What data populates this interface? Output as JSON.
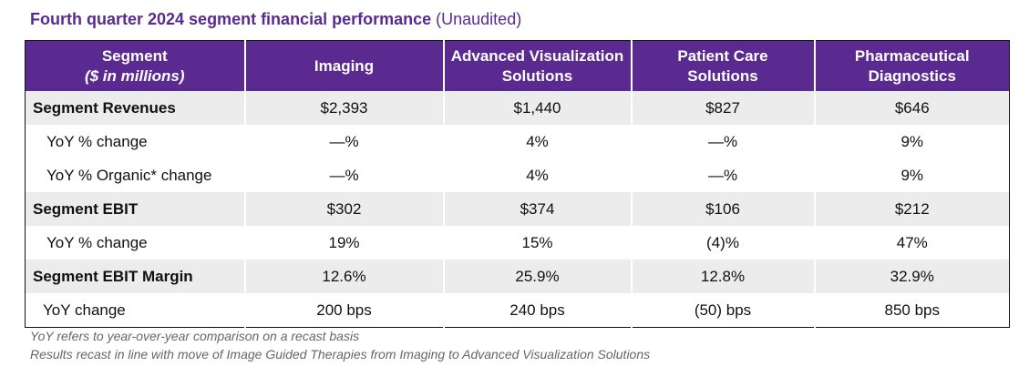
{
  "title": "Fourth quarter 2024 segment financial performance",
  "title_note": "(Unaudited)",
  "table": {
    "headers": [
      "Segment",
      "Imaging",
      "Advanced Visualization Solutions",
      "Patient Care Solutions",
      "Pharmaceutical Diagnostics"
    ],
    "header_unit": "($ in millions)",
    "rows": [
      [
        "Segment Revenues",
        "$2,393",
        "$1,440",
        "$827",
        "$646"
      ],
      [
        "YoY % change",
        "—%",
        "4%",
        "—%",
        "9%"
      ],
      [
        "YoY % Organic* change",
        "—%",
        "4%",
        "—%",
        "9%"
      ],
      [
        "Segment EBIT",
        "$302",
        "$374",
        "$106",
        "$212"
      ],
      [
        "YoY % change",
        "19%",
        "15%",
        "(4)%",
        "47%"
      ],
      [
        "Segment EBIT Margin",
        "12.6%",
        "25.9%",
        "12.8%",
        "32.9%"
      ],
      [
        "YoY change",
        "200 bps",
        "240 bps",
        "(50) bps",
        "850 bps"
      ]
    ]
  },
  "footnotes": [
    "YoY refers to year-over-year comparison on a recast basis",
    "Results recast in line with move of Image Guided Therapies from Imaging to Advanced Visualization Solutions"
  ]
}
